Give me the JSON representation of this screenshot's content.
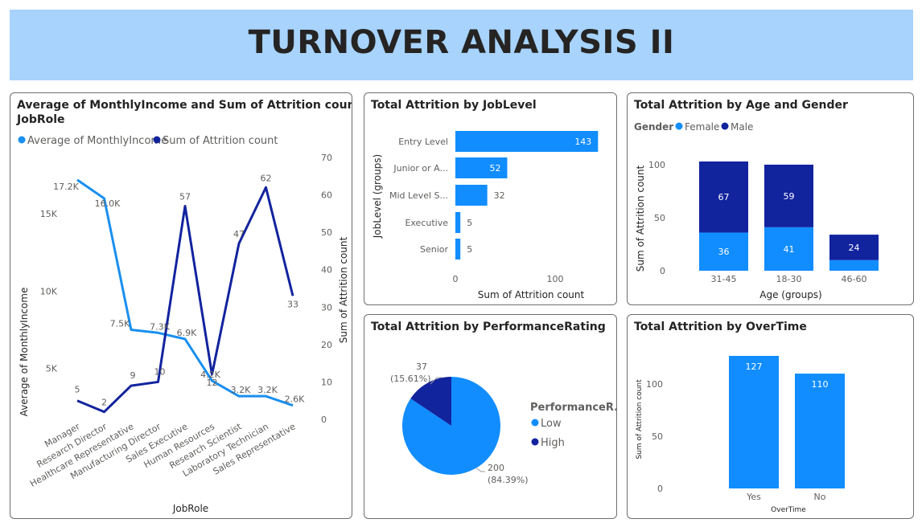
{
  "page": {
    "title": "TURNOVER ANALYSIS II"
  },
  "colors": {
    "light": "#118dff",
    "dark": "#12239e",
    "line_light": "#1a8fef",
    "banner": "#a7d3fd"
  },
  "chart_data": [
    {
      "id": "jobrole",
      "type": "line",
      "title_line1": "Average of MonthlyIncome and Sum of Attrition count by",
      "title_line2": "JobRole",
      "legend": [
        "Average of MonthlyIncome",
        "Sum of Attrition count"
      ],
      "categories": [
        "Manager",
        "Research Director",
        "Healthcare Representative",
        "Manufacturing Director",
        "Sales Executive",
        "Human Resources",
        "Research Scientist",
        "Laboratory Technician",
        "Sales Representative"
      ],
      "xlabel": "JobRole",
      "ylabel": "Average of MonthlyIncome",
      "y2label": "Sum of Attrition count",
      "yticks": [
        "5K",
        "10K",
        "15K"
      ],
      "y2ticks": [
        "0",
        "10",
        "20",
        "30",
        "40",
        "50",
        "60",
        "70"
      ],
      "ylim": [
        1700,
        18650
      ],
      "y2lim": [
        0,
        70
      ],
      "series": [
        {
          "name": "Average of MonthlyIncome",
          "axis": "left",
          "values": [
            17200,
            16000,
            7500,
            7300,
            6900,
            4200,
            3200,
            3200,
            2600
          ],
          "labels": [
            "17.2K",
            "16.0K",
            "7.5K",
            "7.3K",
            "6.9K",
            "4.2K",
            "3.2K",
            "3.2K",
            "2.6K"
          ]
        },
        {
          "name": "Sum of Attrition count",
          "axis": "right",
          "values": [
            5,
            2,
            9,
            10,
            57,
            12,
            47,
            62,
            33
          ],
          "labels": [
            "5",
            "2",
            "9",
            "10",
            "57",
            "12",
            "47",
            "62",
            "33"
          ]
        }
      ]
    },
    {
      "id": "joblevel",
      "type": "bar",
      "title": "Total Attrition by JobLevel",
      "categories": [
        "Entry Level",
        "Junior or A...",
        "Mid Level S...",
        "Executive",
        "Senior"
      ],
      "values": [
        143,
        52,
        32,
        5,
        5
      ],
      "xlabel": "Sum of Attrition count",
      "ylabel": "JobLevel (groups)",
      "xticks": [
        "0",
        "100"
      ],
      "xlim": [
        0,
        150
      ]
    },
    {
      "id": "agegender",
      "type": "bar",
      "title": "Total Attrition by Age and Gender",
      "legend_title": "Gender",
      "legend": [
        "Female",
        "Male"
      ],
      "categories": [
        "31-45",
        "18-30",
        "46-60"
      ],
      "series": [
        {
          "name": "Female",
          "values": [
            36,
            41,
            10
          ]
        },
        {
          "name": "Male",
          "values": [
            67,
            59,
            24
          ]
        }
      ],
      "value_labels": [
        [
          "36",
          "67"
        ],
        [
          "41",
          "59"
        ],
        [
          "",
          "24"
        ]
      ],
      "xlabel": "Age (groups)",
      "ylabel": "Sum of Attrition count",
      "yticks": [
        "0",
        "50",
        "100"
      ],
      "ylim": [
        0,
        103
      ]
    },
    {
      "id": "performance",
      "type": "pie",
      "title": "Total Attrition by PerformanceRating",
      "legend_title": "PerformanceR...",
      "categories": [
        "Low",
        "High"
      ],
      "values": [
        200,
        37
      ],
      "labels": [
        [
          "200",
          "(84.39%)"
        ],
        [
          "37",
          "(15.61%)"
        ]
      ]
    },
    {
      "id": "overtime",
      "type": "bar",
      "title": "Total Attrition by OverTime",
      "categories": [
        "Yes",
        "No"
      ],
      "values": [
        127,
        110
      ],
      "xlabel": "OverTime",
      "ylabel": "Sum of Attrition count",
      "yticks": [
        "0",
        "50",
        "100"
      ],
      "ylim": [
        0,
        127
      ]
    }
  ]
}
